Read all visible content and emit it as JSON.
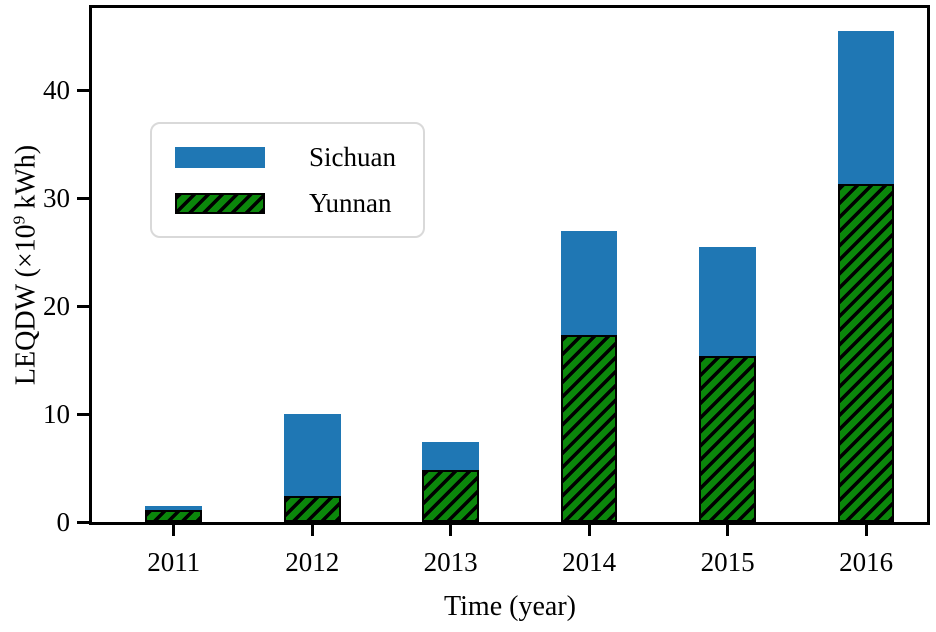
{
  "figure": {
    "x_axis_label": "Time (year)",
    "y_axis_label": {
      "pre": "LEQDW (×10",
      "sup": "9",
      "post": " kWh)"
    }
  },
  "legend": {
    "items": [
      {
        "label": "Sichuan",
        "swatch": "solid-blue"
      },
      {
        "label": "Yunnan",
        "swatch": "hatched-green"
      }
    ]
  },
  "colors": {
    "sichuan_blue": "#1f77b4",
    "yunnan_green": "#0b870b",
    "hatch_black": "#000000",
    "axis_black": "#000000",
    "legend_border_gray": "#d9d9d9",
    "background_white": "#ffffff"
  },
  "chart_data": {
    "type": "bar",
    "stacked": true,
    "title": "",
    "xlabel": "Time (year)",
    "ylabel": "LEQDW (×10⁹ kWh)",
    "categories": [
      2011,
      2012,
      2013,
      2014,
      2015,
      2016
    ],
    "series": [
      {
        "name": "Sichuan",
        "color": "#1f77b4",
        "hatch": null,
        "values": [
          0.4,
          7.6,
          2.6,
          9.7,
          10.1,
          14.2
        ]
      },
      {
        "name": "Yunnan",
        "color": "#0b870b",
        "hatch": "//",
        "values": [
          1.1,
          2.4,
          4.8,
          17.3,
          15.4,
          31.3
        ]
      }
    ],
    "stack_order": [
      "Yunnan",
      "Sichuan"
    ],
    "totals": [
      1.5,
      10.0,
      7.4,
      27.0,
      25.5,
      45.5
    ],
    "y_ticks": [
      0,
      10,
      20,
      30,
      40
    ],
    "ylim": [
      0,
      47.6
    ],
    "xlim": [
      2010.41,
      2016.44
    ],
    "bar_width": 0.41,
    "grid": false,
    "legend_position": "upper-left-inside"
  }
}
